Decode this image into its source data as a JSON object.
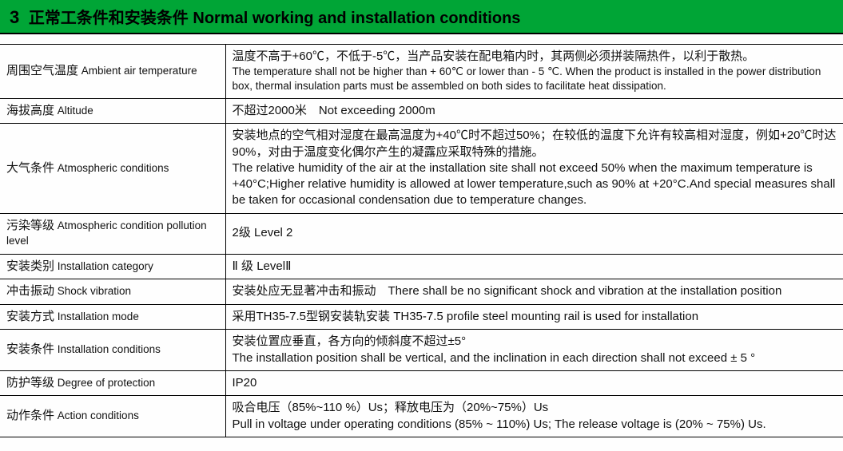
{
  "header": {
    "number": "3",
    "title_cn": "正常工条件和安装条件",
    "title_en": "Normal working and installation conditions"
  },
  "rows": [
    {
      "label_cn": "周围空气温度",
      "label_en": "Ambient air temperature",
      "value_cn": "温度不高于+60℃，不低于-5℃，当产品安装在配电箱内时，其两侧必须拼装隔热件，以利于散热。",
      "value_en": "The temperature shall not be higher than + 60℃ or lower than - 5 ℃. When the product is installed in the power distribution box, thermal insulation parts must be assembled on both sides to facilitate heat dissipation."
    },
    {
      "label_cn": "海拔高度",
      "label_en": "Altitude",
      "value_cn": "不超过2000米　Not exceeding 2000m",
      "value_en": ""
    },
    {
      "label_cn": "大气条件",
      "label_en": "Atmospheric conditions",
      "value_cn": "安装地点的空气相对湿度在最高温度为+40℃时不超过50%；在较低的温度下允许有较高相对湿度，例如+20℃时达90%，对由于温度变化偶尔产生的凝露应采取特殊的措施。",
      "value_en": "The relative humidity of the air at the installation site shall not exceed 50% when the maximum temperature is +40°C;Higher relative humidity is allowed at lower temperature,such as 90% at +20°C.And special measures shall be taken for occasional condensation due to temperature changes."
    },
    {
      "label_cn": "污染等级",
      "label_en": "Atmospheric condition pollution level",
      "value_cn": "2级 Level 2",
      "value_en": ""
    },
    {
      "label_cn": "安装类别",
      "label_en": "Installation category",
      "value_cn": "Ⅱ 级  LevelⅡ",
      "value_en": ""
    },
    {
      "label_cn": "冲击振动",
      "label_en": "Shock vibration",
      "value_cn": "安装处应无显著冲击和振动　There shall be no significant shock and vibration at the installation position",
      "value_en": ""
    },
    {
      "label_cn": "安装方式",
      "label_en": "Installation mode",
      "value_cn": "采用TH35-7.5型钢安装轨安装 TH35-7.5 profile steel mounting rail is used for installation",
      "value_en": ""
    },
    {
      "label_cn": "安装条件",
      "label_en": "Installation conditions",
      "value_cn": "安装位置应垂直，各方向的倾斜度不超过±5°",
      "value_en": "The installation position shall be vertical, and the inclination in each direction shall not exceed ± 5 °"
    },
    {
      "label_cn": "防护等级",
      "label_en": "Degree of protection",
      "value_cn": "IP20",
      "value_en": ""
    },
    {
      "label_cn": "动作条件",
      "label_en": "Action conditions",
      "value_cn": "吸合电压（85%~110 %）Us；释放电压为（20%~75%）Us",
      "value_en": "Pull in voltage under operating conditions (85% ~ 110%) Us; The release voltage is (20% ~ 75%) Us."
    }
  ]
}
